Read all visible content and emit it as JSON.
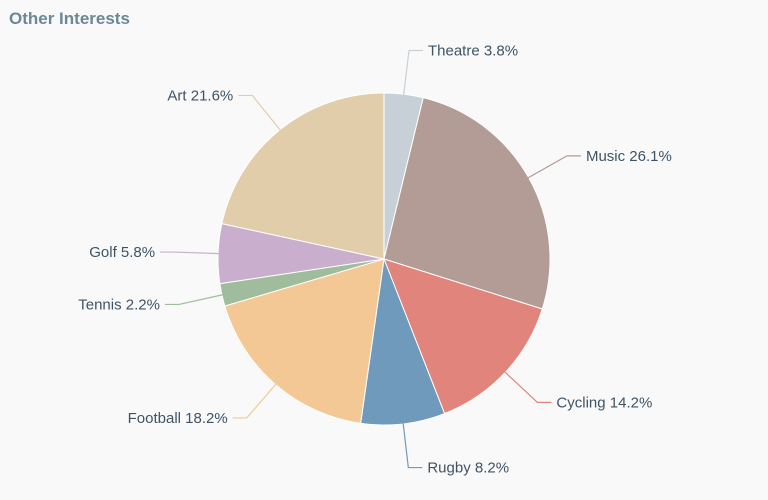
{
  "chart_data": {
    "type": "pie",
    "title": "Other Interests",
    "slices": [
      {
        "label": "Theatre",
        "value": 3.8,
        "display": "Theatre 3.8%",
        "color": "#c7d0d6"
      },
      {
        "label": "Music",
        "value": 26.1,
        "display": "Music 26.1%",
        "color": "#b39c96"
      },
      {
        "label": "Cycling",
        "value": 14.2,
        "display": "Cycling 14.2%",
        "color": "#e1847b"
      },
      {
        "label": "Rugby",
        "value": 8.2,
        "display": "Rugby 8.2%",
        "color": "#6f9abb"
      },
      {
        "label": "Football",
        "value": 18.2,
        "display": "Football 18.2%",
        "color": "#f4c895"
      },
      {
        "label": "Tennis",
        "value": 2.2,
        "display": "Tennis 2.2%",
        "color": "#9fbc9c"
      },
      {
        "label": "Golf",
        "value": 5.8,
        "display": "Golf 5.8%",
        "color": "#c9afcd"
      },
      {
        "label": "Art",
        "value": 21.6,
        "display": "Art 21.6%",
        "color": "#e2cdaa"
      }
    ],
    "start_angle_deg": 0,
    "direction": "clockwise",
    "legend": "none"
  }
}
